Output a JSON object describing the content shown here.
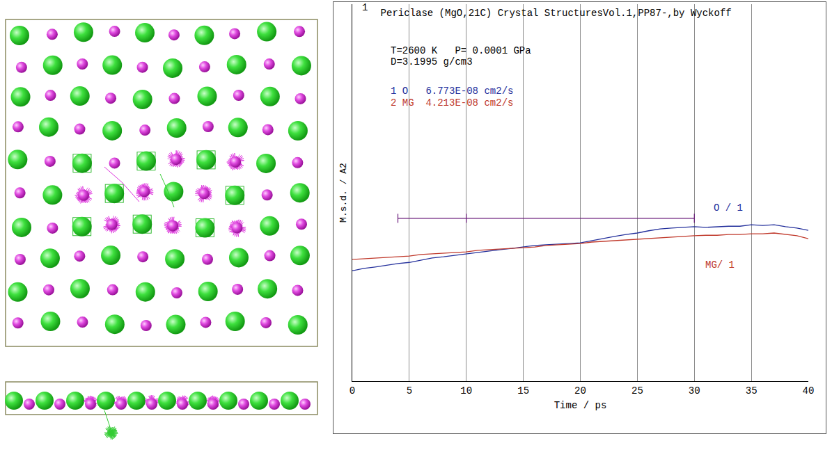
{
  "chart_data": {
    "type": "line",
    "title": "Periclase (MgO,21C) Crystal StructuresVol.1,PP87-,by Wyckoff",
    "x_label": "Time / ps",
    "y_label": "M.s.d. / A2",
    "x": [
      0,
      1,
      2,
      3,
      4,
      5,
      6,
      7,
      8,
      9,
      10,
      11,
      12,
      13,
      14,
      15,
      16,
      17,
      18,
      19,
      20,
      21,
      22,
      23,
      24,
      25,
      26,
      27,
      28,
      29,
      30,
      31,
      32,
      33,
      34,
      35,
      36,
      37,
      38,
      39,
      40
    ],
    "series": [
      {
        "name": "O",
        "color": "#24309c",
        "values": [
          2.93,
          2.99,
          3.03,
          3.08,
          3.12,
          3.15,
          3.21,
          3.27,
          3.3,
          3.34,
          3.38,
          3.41,
          3.45,
          3.49,
          3.52,
          3.56,
          3.6,
          3.62,
          3.63,
          3.65,
          3.67,
          3.73,
          3.78,
          3.84,
          3.89,
          3.93,
          3.99,
          4.04,
          4.06,
          4.08,
          4.1,
          4.08,
          4.1,
          4.11,
          4.11,
          4.15,
          4.13,
          4.15,
          4.1,
          4.06,
          4.0
        ]
      },
      {
        "name": "MG",
        "color": "#c0392b",
        "values": [
          3.23,
          3.25,
          3.27,
          3.28,
          3.3,
          3.32,
          3.36,
          3.38,
          3.39,
          3.41,
          3.43,
          3.47,
          3.49,
          3.51,
          3.52,
          3.54,
          3.56,
          3.6,
          3.62,
          3.63,
          3.65,
          3.69,
          3.71,
          3.73,
          3.75,
          3.76,
          3.78,
          3.8,
          3.82,
          3.84,
          3.86,
          3.87,
          3.87,
          3.89,
          3.89,
          3.91,
          3.91,
          3.93,
          3.89,
          3.86,
          3.78
        ]
      }
    ],
    "xlim": [
      0,
      40
    ],
    "xticks": [
      0,
      5,
      10,
      15,
      20,
      25,
      30,
      35,
      40
    ],
    "ylim": [
      0,
      10
    ],
    "tick_labels": "x",
    "grid": true,
    "fit_marks": [
      4,
      10,
      30
    ],
    "annotations": [
      {
        "text": "1"
      },
      {
        "text": "T=2600 K   P= 0.0001 GPa"
      },
      {
        "text": "D=3.1995 g/cm3"
      },
      {
        "text": "1 O   6.773E-08 cm2/s",
        "color": "#24309c"
      },
      {
        "text": "2 MG  4.213E-08 cm2/s",
        "color": "#c0392b"
      },
      {
        "text": "O / 1",
        "color": "#24309c"
      },
      {
        "text": "MG/ 1",
        "color": "#c0392b"
      }
    ]
  }
}
